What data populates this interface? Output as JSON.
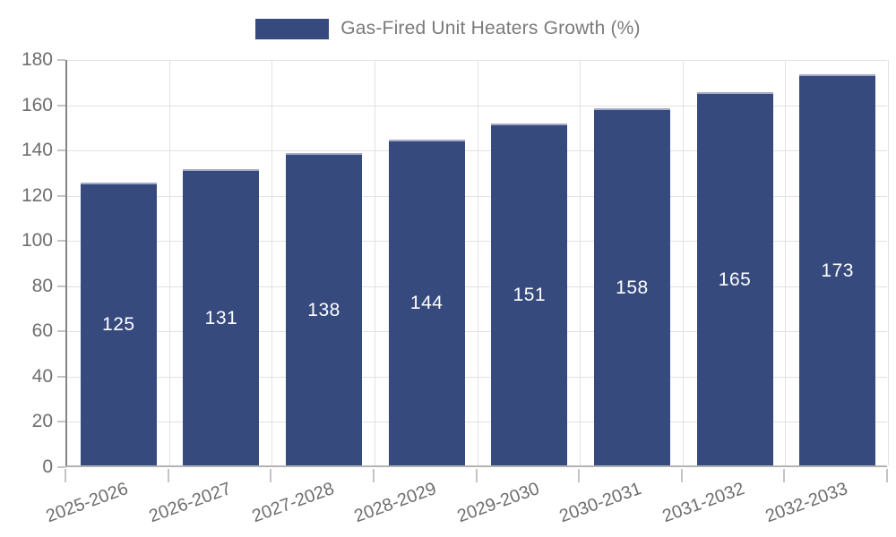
{
  "legend": {
    "label": "Gas-Fired Unit Heaters Growth (%)",
    "swatch_color": "#364A7E"
  },
  "chart_data": {
    "type": "bar",
    "title": "",
    "xlabel": "",
    "ylabel": "",
    "categories": [
      "2025-2026",
      "2026-2027",
      "2027-2028",
      "2028-2029",
      "2029-2030",
      "2030-2031",
      "2031-2032",
      "2032-2033"
    ],
    "values": [
      125,
      131,
      138,
      144,
      151,
      158,
      165,
      173
    ],
    "series_name": "Gas-Fired Unit Heaters Growth (%)",
    "ylim": [
      0,
      180
    ],
    "yticks": [
      0,
      20,
      40,
      60,
      80,
      100,
      120,
      140,
      160,
      180
    ],
    "grid": true,
    "legend_position": "top",
    "bar_color": "#364A7E",
    "bar_top_edge_color": "#a3abc7",
    "value_label_color": "#ffffff",
    "value_label_position": "middle"
  },
  "colors": {
    "grid": "#e2e2e2",
    "axis_left": "#858585",
    "axis_bottom": "#b3b3b3",
    "tick": "#c4c4c4",
    "tick_label": "#6e6e6e",
    "legend_text": "#7a7a7a",
    "background": "#ffffff"
  }
}
